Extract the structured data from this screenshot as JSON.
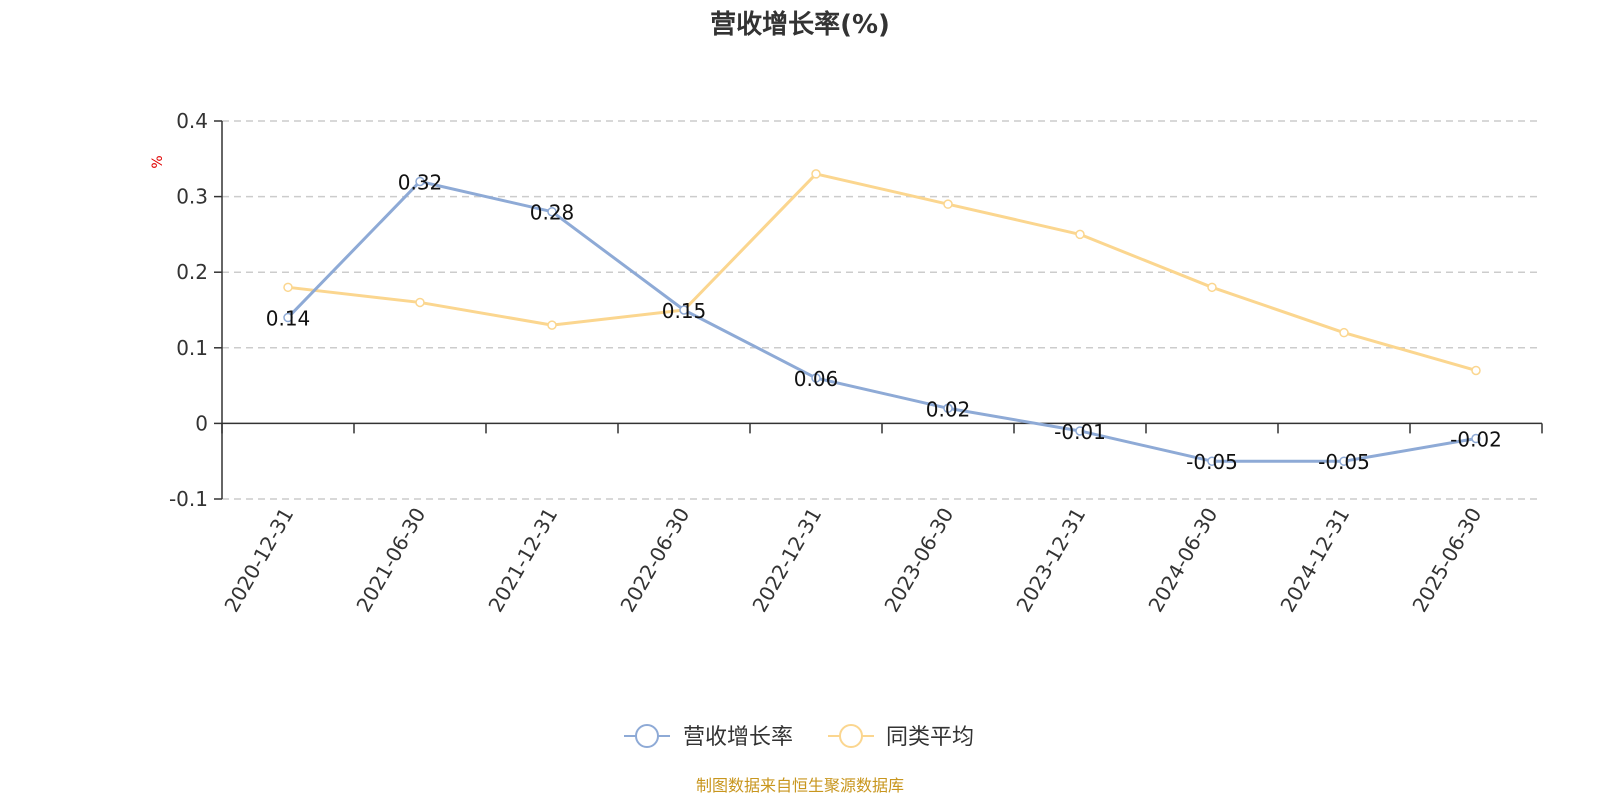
{
  "colors": {
    "series_main": "#8eaad6",
    "series_avg": "#fbd68f",
    "unit": "#e00000",
    "source": "#c8961e",
    "grid": "#cccccc",
    "axis": "#333333"
  },
  "chart_data": {
    "type": "line",
    "title": "营收增长率(%)",
    "ylabel": "%",
    "ylim": [
      -0.1,
      0.4
    ],
    "yticks": [
      "0.4",
      "0.3",
      "0.2",
      "0.1",
      "0",
      "-0.1"
    ],
    "grid": true,
    "legend_position": "bottom",
    "categories": [
      "2020-12-31",
      "2021-06-30",
      "2021-12-31",
      "2022-06-30",
      "2022-12-31",
      "2023-06-30",
      "2023-12-31",
      "2024-06-30",
      "2024-12-31",
      "2025-06-30"
    ],
    "series": [
      {
        "name": "营收增长率",
        "values": [
          0.14,
          0.32,
          0.28,
          0.15,
          0.06,
          0.02,
          -0.01,
          -0.05,
          -0.05,
          -0.02
        ],
        "labels": [
          "0.14",
          "0.32",
          "0.28",
          "0.15",
          "0.06",
          "0.02",
          "-0.01",
          "-0.05",
          "-0.05",
          "-0.02"
        ]
      },
      {
        "name": "同类平均",
        "values": [
          0.18,
          0.16,
          0.13,
          0.15,
          0.33,
          0.29,
          0.25,
          0.18,
          0.12,
          0.07
        ]
      }
    ]
  },
  "source": "制图数据来自恒生聚源数据库"
}
